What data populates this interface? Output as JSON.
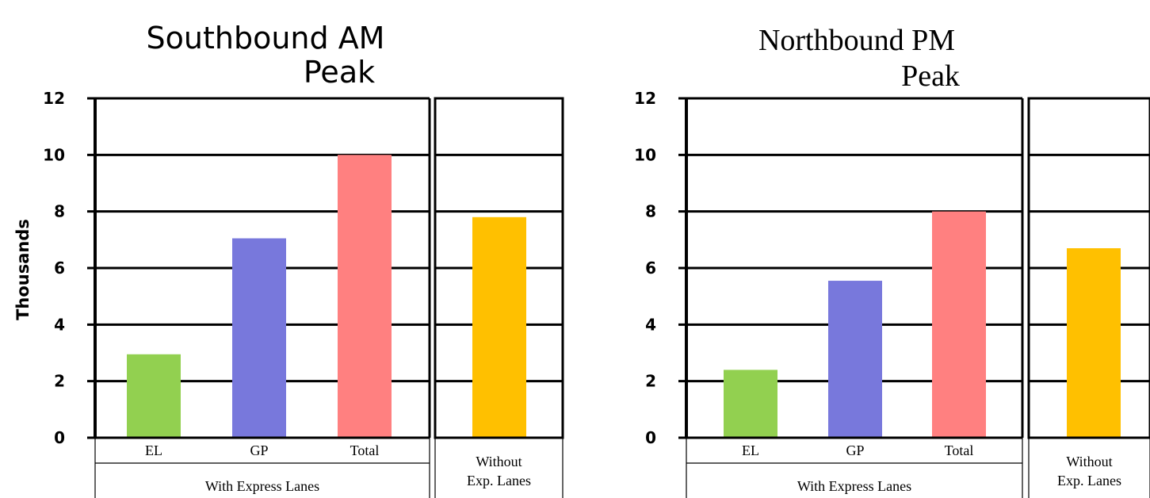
{
  "y_axis_label": "Thousands",
  "chart_data": [
    {
      "type": "bar",
      "title": [
        "Southbound AM",
        "Peak"
      ],
      "title_font": "sans",
      "ylim": [
        0,
        12
      ],
      "yticks": [
        "0",
        "2",
        "4",
        "6",
        "8",
        "10",
        "12"
      ],
      "ylabel": "Thousands",
      "grid": true,
      "groups": [
        {
          "label": "With Express Lanes",
          "categories": [
            "EL",
            "GP",
            "Total"
          ],
          "values": [
            2.95,
            7.05,
            10.0
          ],
          "colors": [
            "#92d050",
            "#7878dc",
            "#ff8080"
          ]
        },
        {
          "label": "Without Exp. Lanes",
          "label_lines": [
            "Without",
            "Exp. Lanes"
          ],
          "categories": [
            ""
          ],
          "values": [
            7.8
          ],
          "colors": [
            "#ffc000"
          ]
        }
      ]
    },
    {
      "type": "bar",
      "title": [
        "Northbound PM",
        "Peak"
      ],
      "title_font": "serif",
      "ylim": [
        0,
        12
      ],
      "yticks": [
        "0",
        "2",
        "4",
        "6",
        "8",
        "10",
        "12"
      ],
      "ylabel": "",
      "grid": true,
      "groups": [
        {
          "label": "With Express Lanes",
          "categories": [
            "EL",
            "GP",
            "Total"
          ],
          "values": [
            2.4,
            5.55,
            8.0
          ],
          "colors": [
            "#92d050",
            "#7878dc",
            "#ff8080"
          ]
        },
        {
          "label": "Without Exp. Lanes",
          "label_lines": [
            "Without",
            "Exp. Lanes"
          ],
          "categories": [
            ""
          ],
          "values": [
            6.7
          ],
          "colors": [
            "#ffc000"
          ]
        }
      ]
    }
  ]
}
